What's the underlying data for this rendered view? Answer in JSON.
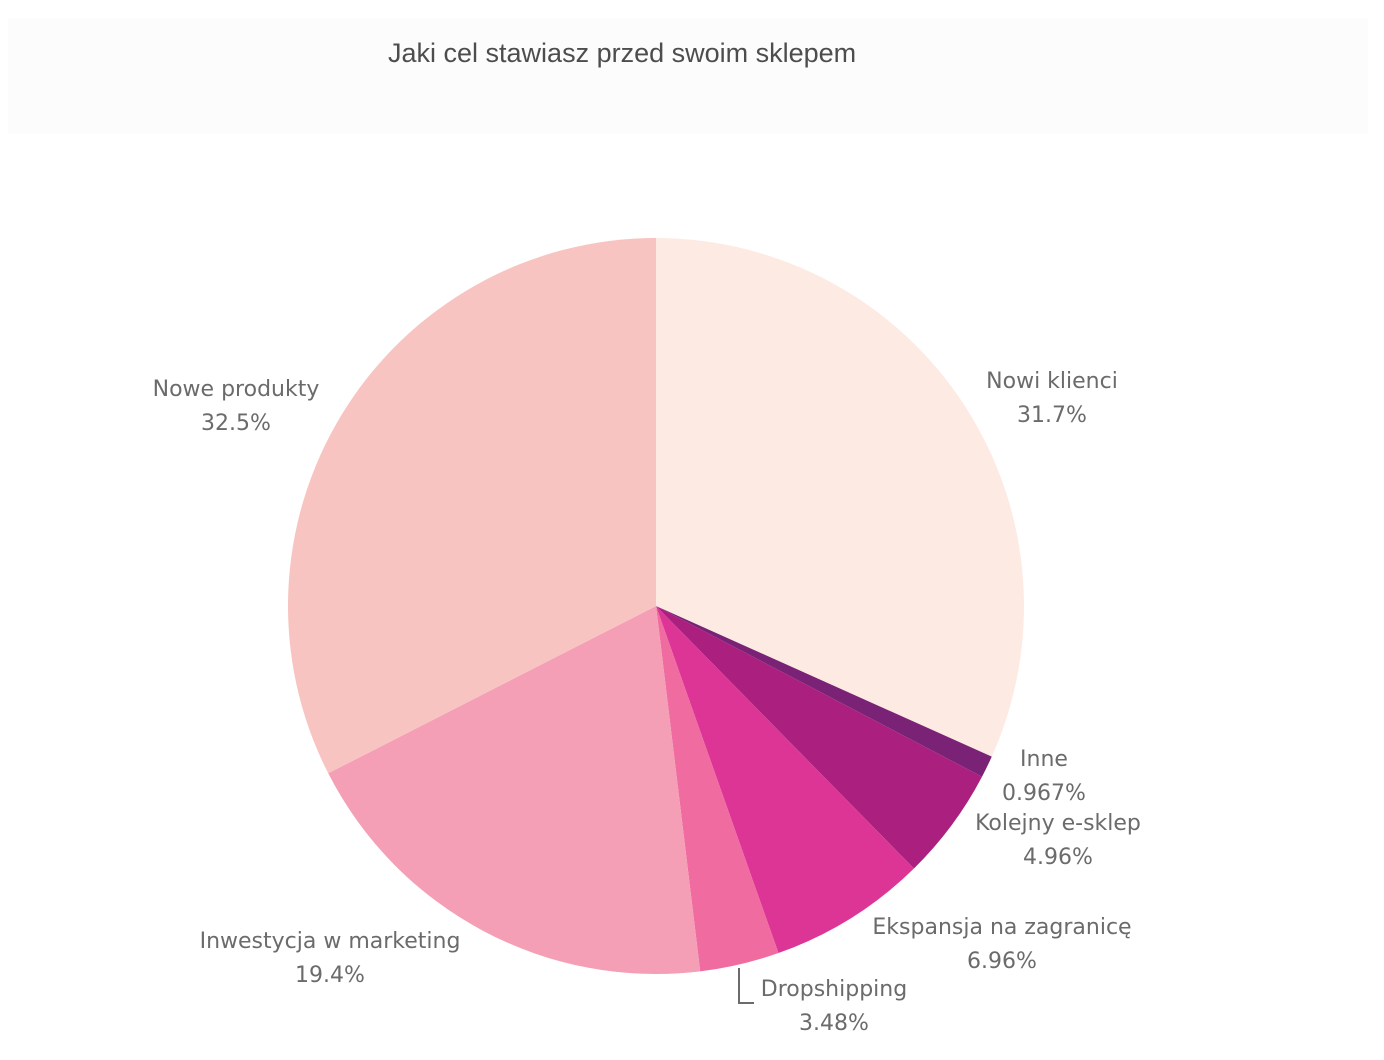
{
  "chart_data": {
    "type": "pie",
    "title": "Jaki cel stawiasz przed swoim sklepem",
    "categories": [
      "Nowi klienci",
      "Inne",
      "Kolejny e-sklep",
      "Ekspansja na zagranicę",
      "Dropshipping",
      "Inwestycja w marketing",
      "Nowe produkty"
    ],
    "values": [
      31.7,
      0.967,
      4.96,
      6.96,
      3.48,
      19.4,
      32.5
    ],
    "value_labels": [
      "31.7%",
      "0.967%",
      "4.96%",
      "6.96%",
      "3.48%",
      "19.4%",
      "32.5%"
    ],
    "colors": [
      "#fdebe3",
      "#7a2275",
      "#ab1f7f",
      "#dd3596",
      "#ef6ba0",
      "#f49fb6",
      "#f8c4c1"
    ],
    "start_angle": "12 o'clock",
    "direction": "clockwise"
  }
}
